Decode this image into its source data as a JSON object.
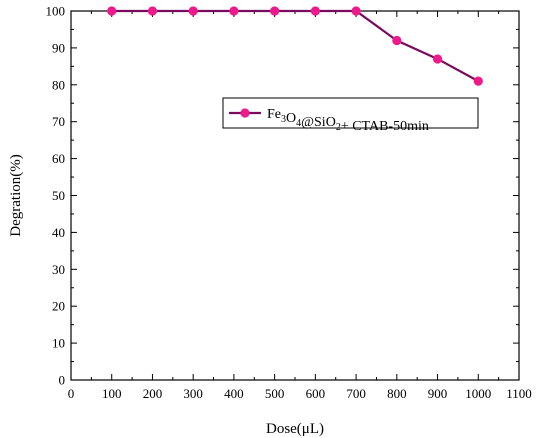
{
  "chart_data": {
    "type": "line",
    "xlabel": "Dose(μL)",
    "ylabel": "Degration(%)",
    "xlim": [
      0,
      1100
    ],
    "ylim": [
      0,
      100
    ],
    "x_ticks": [
      0,
      100,
      200,
      300,
      400,
      500,
      600,
      700,
      800,
      900,
      1000,
      1100
    ],
    "y_ticks": [
      0,
      10,
      20,
      30,
      40,
      50,
      60,
      70,
      80,
      90,
      100
    ],
    "grid": false,
    "legend_position": "upper-right",
    "series": [
      {
        "name": "Fe3O4@SiO2+ CTAB-50min",
        "name_parts": [
          {
            "text": "Fe",
            "sub": false
          },
          {
            "text": "3",
            "sub": true
          },
          {
            "text": "O",
            "sub": false
          },
          {
            "text": "4",
            "sub": true
          },
          {
            "text": "@SiO",
            "sub": false
          },
          {
            "text": "2",
            "sub": true
          },
          {
            "text": "+ CTAB-50min",
            "sub": false
          }
        ],
        "line_color": "#7a0a5e",
        "marker_color": "#ee1a8c",
        "x": [
          100,
          200,
          300,
          400,
          500,
          600,
          700,
          800,
          900,
          1000
        ],
        "y": [
          100,
          100,
          100,
          100,
          100,
          100,
          100,
          92,
          87,
          81
        ]
      }
    ]
  }
}
